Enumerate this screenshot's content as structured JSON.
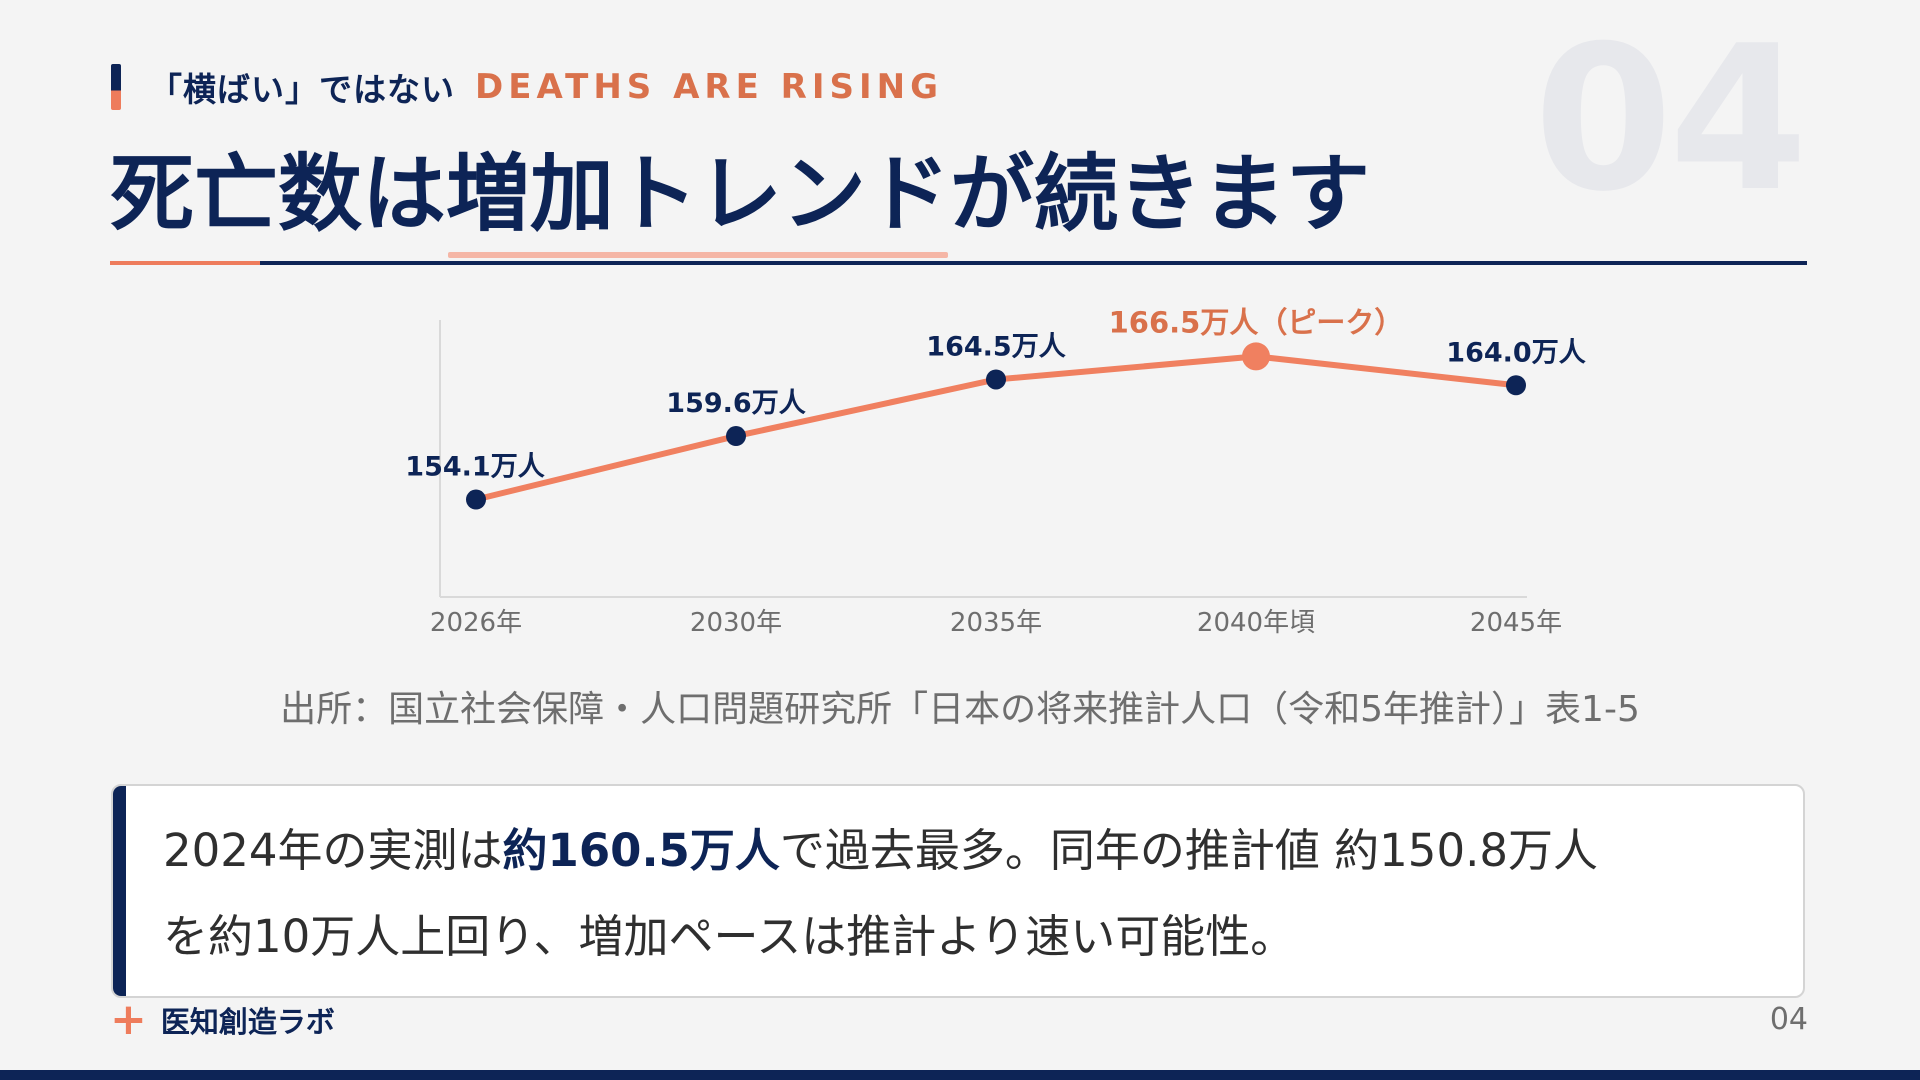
{
  "header": {
    "eyebrow_jp": "「横ばい」ではない",
    "eyebrow_en": "DEATHS ARE RISING",
    "section_number": "04",
    "title": "死亡数は増加トレンドが続きます"
  },
  "chart_data": {
    "type": "line",
    "title": "",
    "xlabel": "",
    "ylabel": "",
    "categories": [
      "2026年",
      "2030年",
      "2035年",
      "2040年頃",
      "2045年"
    ],
    "values": [
      154.1,
      159.6,
      164.5,
      166.5,
      164.0
    ],
    "data_labels": [
      "154.1万人",
      "159.6万人",
      "164.5万人",
      "166.5万人（ピーク）",
      "164.0万人"
    ],
    "peak_index": 3,
    "unit": "万人",
    "ylim": [
      146,
      170
    ],
    "grid": false,
    "colors": {
      "line": "#f08060",
      "point": "#0d2456",
      "peak": "#f08060",
      "peak_label": "#d9714b",
      "label": "#0d2456",
      "axis": "#d9d9d9",
      "tick": "#6e6e6e"
    }
  },
  "source": "出所：国立社会保障・人口問題研究所「日本の将来推計人口（令和5年推計）」表1-5",
  "callout": {
    "part1": "2024年の実測は",
    "emphasis": "約160.5万人",
    "part2": "で過去最多。同年の推計値 約150.8万人",
    "line2": "を約10万人上回り、増加ペースは推計より速い可能性。"
  },
  "footer": {
    "icon": "plus-icon",
    "brand": "医知創造ラボ",
    "page_number": "04"
  }
}
